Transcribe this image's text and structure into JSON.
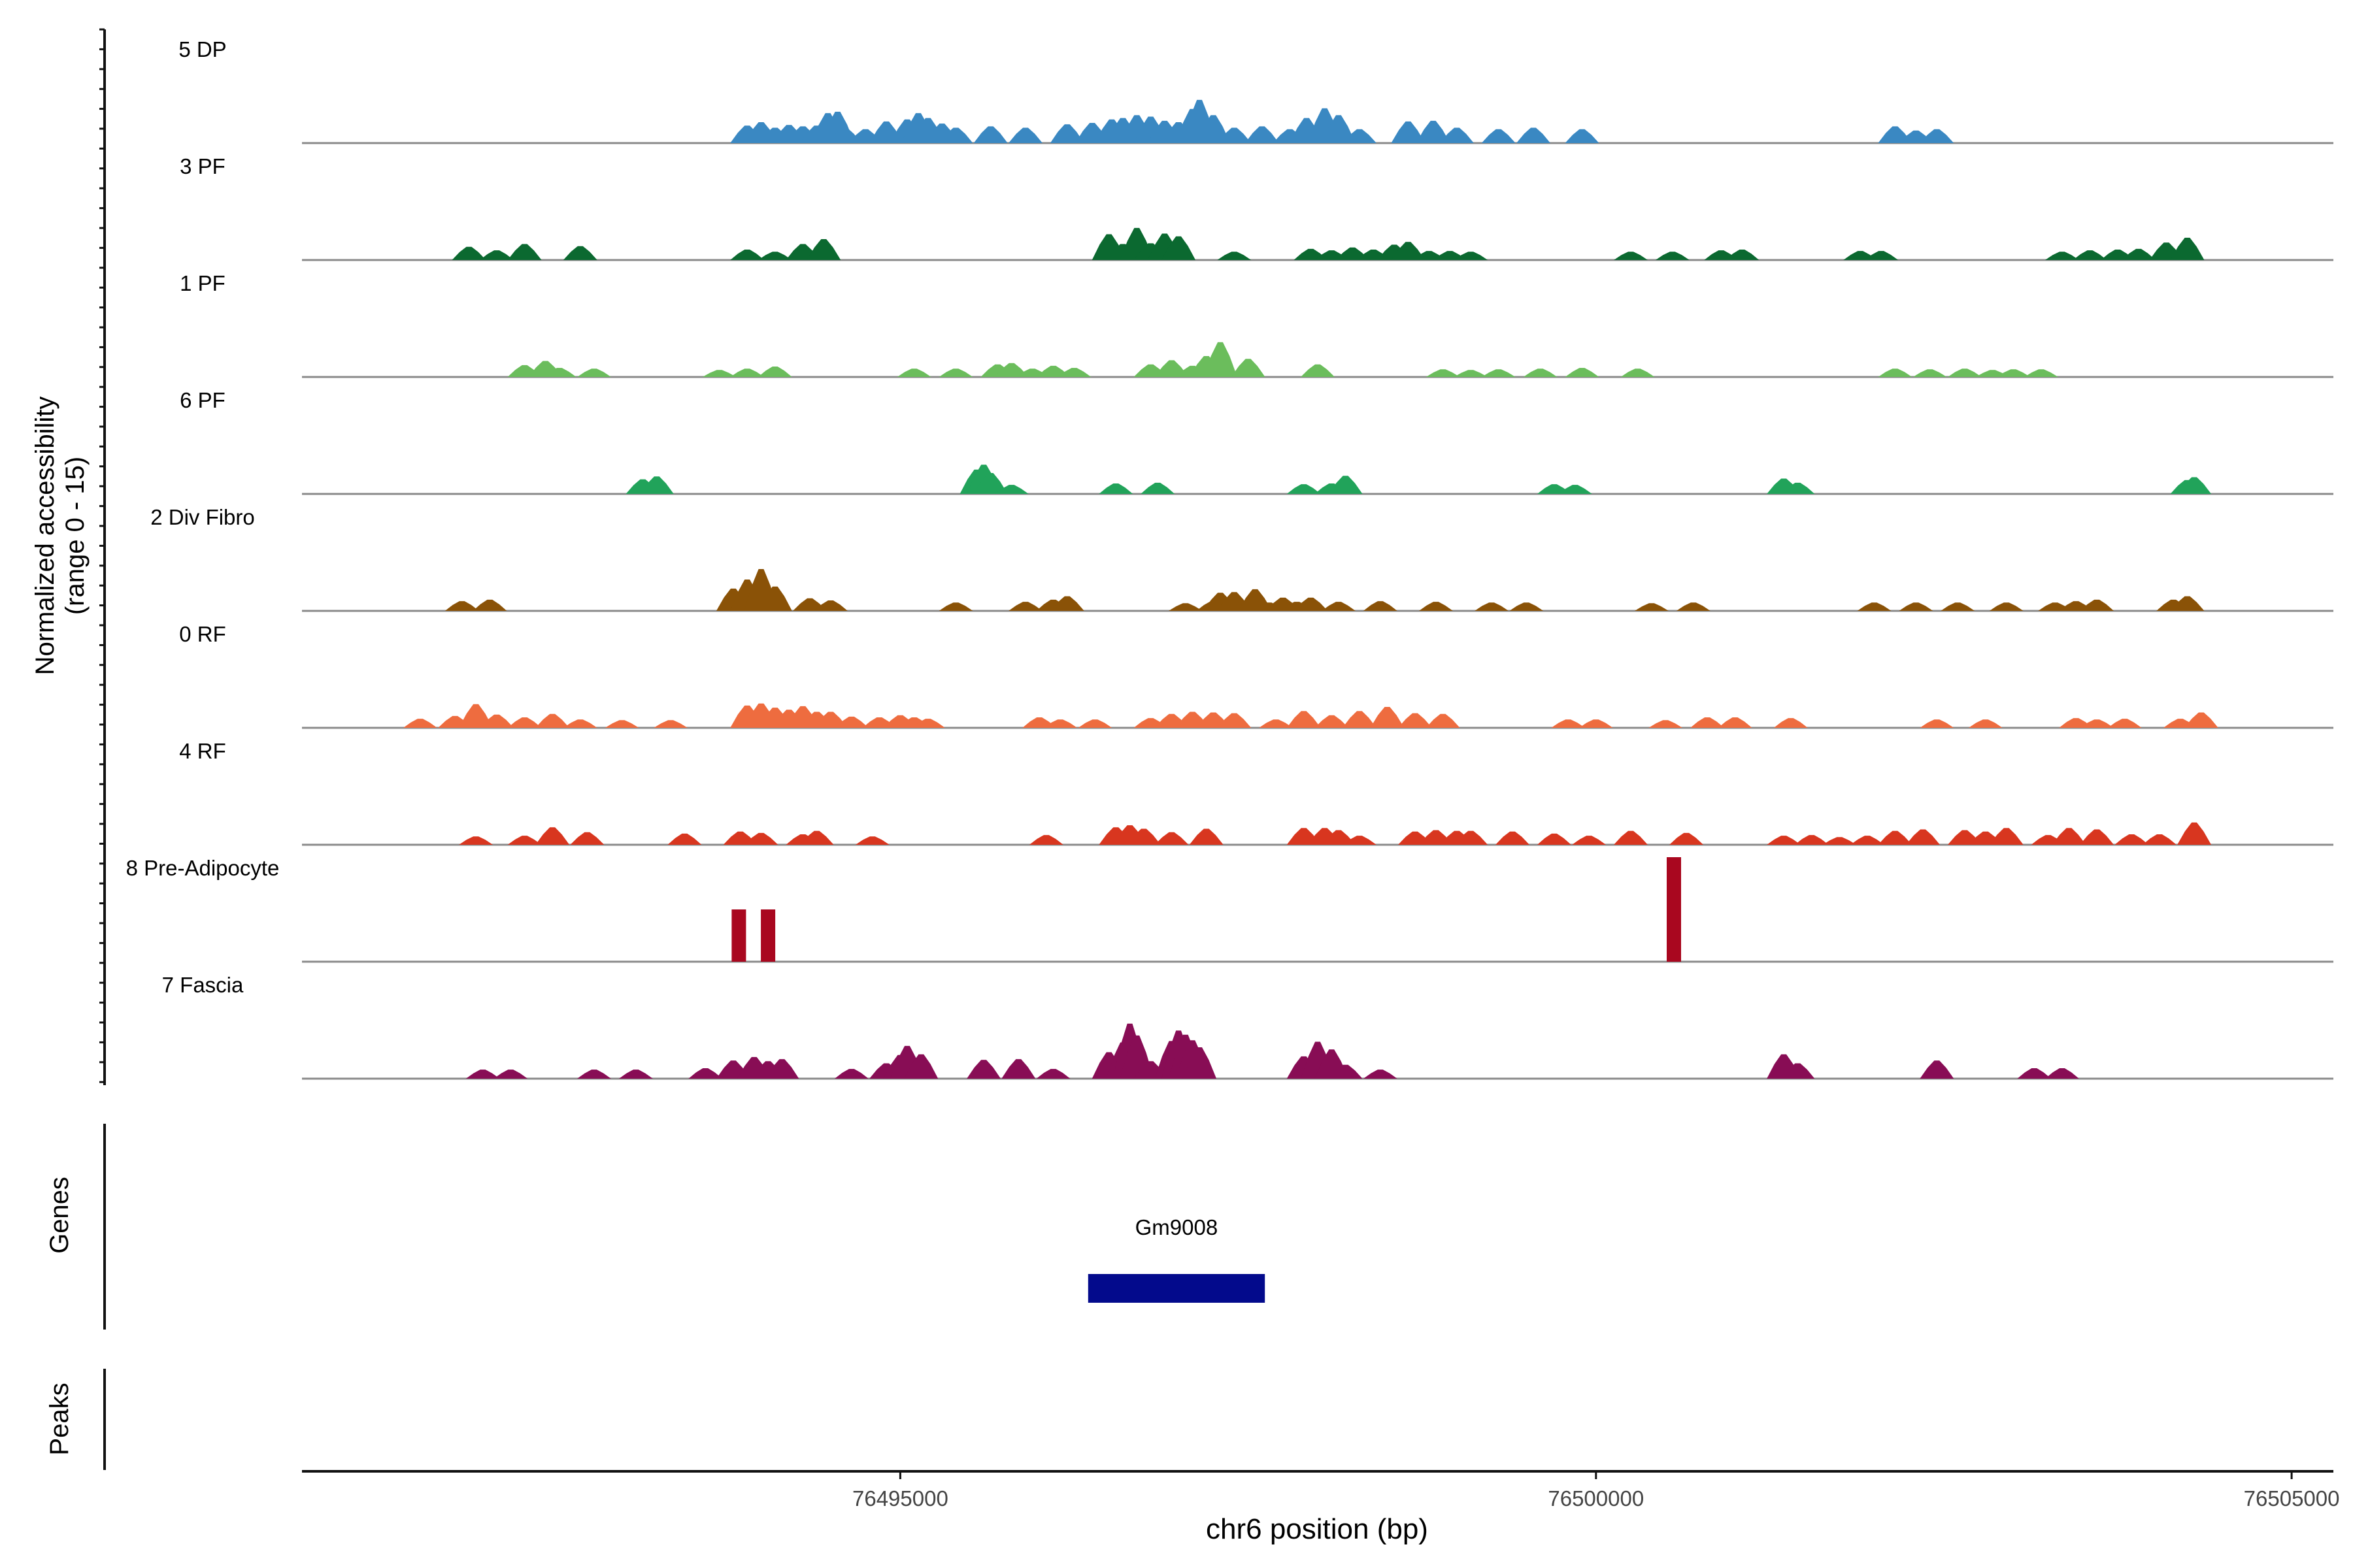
{
  "chart_data": {
    "type": "area",
    "title": "",
    "ylabel_lines": [
      "Normalized accessibility",
      "(range 0 - 15)"
    ],
    "xlabel": "chr6 position (bp)",
    "xlim": [
      76490700,
      76505300
    ],
    "ylim": [
      0,
      15
    ],
    "x_ticks": [
      76495000,
      76500000,
      76505000
    ],
    "x_tick_labels": [
      "76495000",
      "76500000",
      "76505000"
    ],
    "series": [
      {
        "name": "5 DP",
        "color": "#3a88c2",
        "x": [
          76493900,
          76494000,
          76494100,
          76494200,
          76494300,
          76494400,
          76494480,
          76494550,
          76494600,
          76494750,
          76494900,
          76495050,
          76495130,
          76495200,
          76495300,
          76495400,
          76495650,
          76495900,
          76496200,
          76496380,
          76496520,
          76496600,
          76496700,
          76496800,
          76496900,
          76497000,
          76497100,
          76497150,
          76497250,
          76497400,
          76497600,
          76497800,
          76497920,
          76498050,
          76498150,
          76498300,
          76498650,
          76498830,
          76499000,
          76499300,
          76499550,
          76499900,
          76502150,
          76502300,
          76502450
        ],
        "y": [
          2.5,
          3.0,
          2.2,
          2.6,
          2.4,
          2.5,
          4.3,
          4.5,
          2.2,
          2.0,
          3.1,
          3.4,
          4.3,
          3.6,
          2.8,
          2.2,
          2.4,
          2.2,
          2.7,
          2.9,
          3.4,
          3.6,
          4.0,
          3.8,
          3.2,
          3.0,
          4.9,
          6.2,
          4.0,
          2.2,
          2.4,
          2.0,
          3.6,
          5.0,
          4.0,
          2.0,
          3.1,
          3.2,
          2.2,
          2.0,
          2.2,
          2.0,
          2.4,
          1.8,
          2.0
        ]
      },
      {
        "name": "3 PF",
        "color": "#0b6930",
        "x": [
          76491900,
          76492100,
          76492300,
          76492700,
          76493900,
          76494100,
          76494300,
          76494450,
          76496500,
          76496600,
          76496700,
          76496800,
          76496900,
          76497000,
          76497400,
          76497950,
          76498100,
          76498250,
          76498400,
          76498550,
          76498650,
          76498800,
          76498950,
          76499100,
          76500250,
          76500550,
          76500900,
          76501050,
          76501900,
          76502050,
          76503350,
          76503550,
          76503750,
          76503900,
          76504100,
          76504250
        ],
        "y": [
          1.9,
          1.4,
          2.3,
          2.0,
          1.5,
          1.2,
          2.3,
          3.0,
          3.7,
          2.3,
          4.6,
          2.4,
          3.8,
          3.4,
          1.2,
          1.6,
          1.4,
          1.8,
          1.5,
          2.2,
          2.6,
          1.3,
          1.3,
          1.2,
          1.2,
          1.2,
          1.4,
          1.5,
          1.3,
          1.3,
          1.2,
          1.4,
          1.5,
          1.6,
          2.5,
          3.2
        ]
      },
      {
        "name": "1 PF",
        "color": "#6bbd5c",
        "x": [
          76492300,
          76492450,
          76492550,
          76492800,
          76493700,
          76493900,
          76494100,
          76495100,
          76495400,
          76495700,
          76495800,
          76495950,
          76496100,
          76496250,
          76496800,
          76496950,
          76497100,
          76497200,
          76497300,
          76497500,
          76498000,
          76498900,
          76499100,
          76499300,
          76499600,
          76499900,
          76500300,
          76502150,
          76502400,
          76502650,
          76502850,
          76503000,
          76503200
        ],
        "y": [
          1.7,
          2.3,
          1.3,
          1.2,
          1.0,
          1.2,
          1.5,
          1.2,
          1.2,
          1.8,
          2.0,
          1.2,
          1.6,
          1.3,
          1.8,
          2.4,
          1.6,
          3.0,
          5.0,
          2.6,
          1.8,
          1.1,
          1.0,
          1.1,
          1.2,
          1.3,
          1.2,
          1.2,
          1.1,
          1.2,
          1.0,
          1.1,
          1.1
        ]
      },
      {
        "name": "6 PF",
        "color": "#21a35a",
        "x": [
          76493150,
          76493250,
          76495550,
          76495600,
          76495650,
          76495800,
          76496550,
          76496850,
          76497900,
          76498100,
          76498200,
          76499700,
          76499850,
          76501350,
          76501450,
          76504250,
          76504300
        ],
        "y": [
          2.1,
          2.5,
          3.5,
          4.2,
          3.0,
          1.3,
          1.5,
          1.6,
          1.4,
          1.5,
          2.6,
          1.4,
          1.3,
          2.2,
          1.6,
          2.0,
          2.4
        ]
      },
      {
        "name": "2 Div Fibro",
        "color": "#8a5207",
        "x": [
          76491850,
          76492050,
          76493800,
          76493900,
          76494000,
          76494100,
          76494350,
          76494500,
          76495400,
          76495900,
          76496100,
          76496200,
          76497050,
          76497250,
          76497300,
          76497400,
          76497550,
          76497650,
          76497750,
          76497850,
          76497950,
          76498150,
          76498450,
          76498850,
          76499250,
          76499500,
          76500400,
          76500700,
          76502000,
          76502300,
          76502600,
          76502950,
          76503300,
          76503450,
          76503600,
          76504150,
          76504250
        ],
        "y": [
          1.4,
          1.6,
          3.2,
          4.5,
          6.0,
          3.5,
          1.8,
          1.5,
          1.2,
          1.3,
          1.6,
          2.1,
          1.1,
          1.4,
          2.6,
          2.7,
          3.1,
          1.2,
          1.9,
          1.3,
          1.9,
          1.3,
          1.4,
          1.3,
          1.2,
          1.2,
          1.1,
          1.2,
          1.2,
          1.2,
          1.2,
          1.2,
          1.2,
          1.4,
          1.6,
          1.6,
          2.1
        ]
      },
      {
        "name": "0 RF",
        "color": "#ee6c3f",
        "x": [
          76491550,
          76491800,
          76491950,
          76492100,
          76492300,
          76492500,
          76492700,
          76493000,
          76493350,
          76493900,
          76494000,
          76494100,
          76494200,
          76494300,
          76494400,
          76494500,
          76494650,
          76494850,
          76495000,
          76495100,
          76495200,
          76496000,
          76496150,
          76496400,
          76496800,
          76496950,
          76497100,
          76497250,
          76497400,
          76497700,
          76497900,
          76498100,
          76498300,
          76498500,
          76498700,
          76498900,
          76499800,
          76500000,
          76500500,
          76500800,
          76501000,
          76501400,
          76502450,
          76502800,
          76503450,
          76503600,
          76503800,
          76504200,
          76504350
        ],
        "y": [
          1.3,
          1.7,
          3.4,
          1.9,
          1.5,
          2.0,
          1.2,
          1.1,
          1.1,
          3.2,
          3.5,
          2.9,
          2.6,
          3.1,
          2.3,
          2.3,
          1.6,
          1.5,
          1.8,
          1.5,
          1.3,
          1.5,
          1.2,
          1.2,
          1.4,
          2.0,
          2.3,
          2.2,
          2.1,
          1.2,
          2.4,
          1.8,
          2.4,
          3.0,
          2.1,
          2.0,
          1.2,
          1.2,
          1.1,
          1.5,
          1.5,
          1.4,
          1.2,
          1.2,
          1.4,
          1.2,
          1.3,
          1.3,
          2.2
        ]
      },
      {
        "name": "4 RF",
        "color": "#d8361f",
        "x": [
          76491950,
          76492300,
          76492500,
          76492750,
          76493450,
          76493850,
          76494000,
          76494300,
          76494400,
          76494800,
          76496050,
          76496550,
          76496650,
          76496750,
          76496950,
          76497200,
          76497900,
          76498050,
          76498150,
          76498300,
          76498700,
          76498850,
          76499000,
          76499100,
          76499400,
          76499700,
          76499950,
          76500250,
          76500650,
          76501350,
          76501550,
          76501750,
          76501950,
          76502150,
          76502350,
          76502650,
          76502800,
          76502950,
          76503250,
          76503400,
          76503600,
          76503850,
          76504050,
          76504300
        ],
        "y": [
          1.2,
          1.3,
          2.5,
          1.8,
          1.6,
          1.9,
          1.7,
          1.5,
          2.0,
          1.2,
          1.4,
          2.5,
          2.8,
          2.3,
          1.8,
          2.3,
          2.4,
          2.4,
          2.1,
          1.3,
          1.9,
          2.1,
          2.0,
          2.0,
          1.9,
          1.6,
          1.3,
          2.0,
          1.7,
          1.3,
          1.4,
          1.1,
          1.3,
          2.0,
          2.2,
          2.1,
          1.9,
          2.4,
          1.4,
          2.4,
          2.2,
          1.5,
          1.5,
          3.2
        ]
      },
      {
        "name": "8 Pre-Adipocyte",
        "color": "#a9071f",
        "x": [
          76493840,
          76494050,
          76500560
        ],
        "y": [
          7.5,
          7.5,
          15.0
        ]
      },
      {
        "name": "7 Fascia",
        "color": "#880d55",
        "x": [
          76492000,
          76492200,
          76492800,
          76493100,
          76493600,
          76493800,
          76493950,
          76494050,
          76494150,
          76494650,
          76494900,
          76495000,
          76495050,
          76495150,
          76495600,
          76495850,
          76496100,
          76496500,
          76496600,
          76496650,
          76496700,
          76496800,
          76496950,
          76497000,
          76497050,
          76497100,
          76497150,
          76497900,
          76498000,
          76498100,
          76498200,
          76498450,
          76501350,
          76501450,
          76502450,
          76503150,
          76503350
        ],
        "y": [
          1.3,
          1.3,
          1.3,
          1.3,
          1.5,
          2.6,
          3.1,
          2.5,
          2.8,
          1.4,
          2.2,
          3.4,
          4.7,
          3.5,
          2.7,
          2.8,
          1.4,
          3.8,
          5.2,
          7.9,
          6.2,
          2.5,
          5.4,
          6.9,
          6.3,
          5.5,
          4.5,
          3.2,
          5.3,
          4.2,
          2.0,
          1.3,
          3.5,
          2.2,
          2.6,
          1.5,
          1.5
        ]
      }
    ],
    "genes": {
      "title": "Genes",
      "items": [
        {
          "name": "Gm9008",
          "start": 76496350,
          "end": 76497620,
          "color": "#030a8c"
        }
      ]
    },
    "peaks": {
      "title": "Peaks",
      "items": []
    },
    "grid": false,
    "legend": "none"
  }
}
